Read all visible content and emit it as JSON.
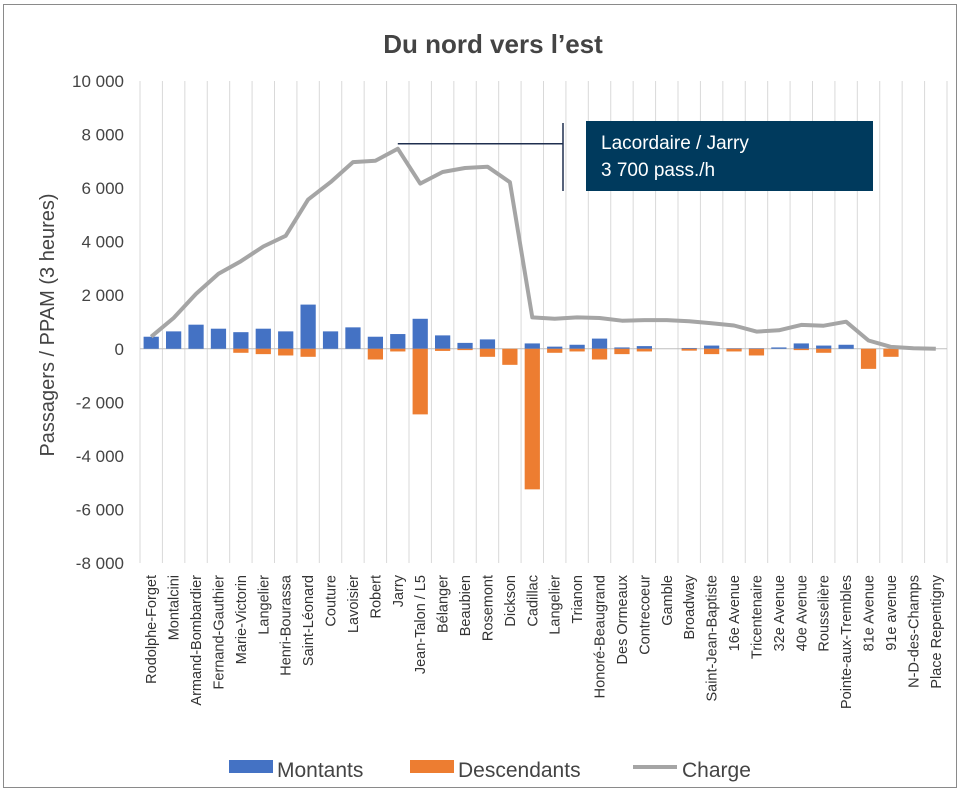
{
  "chart_data": {
    "type": "bar",
    "title": "Du nord vers l’est",
    "ylabel": "Passagers / PPAM (3 heures)",
    "xlabel": "",
    "ylim": [
      -8000,
      10000
    ],
    "yticks": [
      -8000,
      -6000,
      -4000,
      -2000,
      0,
      2000,
      4000,
      6000,
      8000,
      10000
    ],
    "ytick_labels": [
      "-8 000",
      "-6 000",
      "-4 000",
      "-2 000",
      "0",
      "2 000",
      "4 000",
      "6 000",
      "8 000",
      "10 000"
    ],
    "grid": "vertical",
    "legend_position": "bottom",
    "categories": [
      "Rodolphe-Forget",
      "Montalcini",
      "Armand-Bombardier",
      "Fernand-Gauthier",
      "Marie-Victorin",
      "Langelier",
      "Henri-Bourassa",
      "Saint-Léonard",
      "Couture",
      "Lavoisier",
      "Robert",
      "Jarry",
      "Jean-Talon / L5",
      "Bélanger",
      "Beaubien",
      "Rosemont",
      "Dickson",
      "Cadillac",
      "Langelier",
      "Trianon",
      "Honoré-Beaugrand",
      "Des Ormeaux",
      "Contrecoeur",
      "Gamble",
      "Broadway",
      "Saint-Jean-Baptiste",
      "16e Avenue",
      "Tricentenaire",
      "32e Avenue",
      "40e Avenue",
      "Rousselière",
      "Pointe-aux-Trembles",
      "81e Avenue",
      "91e avenue",
      "N-D-des-Champs",
      "Place Repentigny"
    ],
    "series": [
      {
        "name": "Montants",
        "kind": "bar",
        "color": "#4472c4",
        "values": [
          450,
          650,
          900,
          750,
          620,
          750,
          650,
          1650,
          650,
          800,
          450,
          550,
          1120,
          500,
          220,
          350,
          0,
          200,
          80,
          150,
          380,
          50,
          100,
          0,
          30,
          120,
          20,
          20,
          50,
          200,
          120,
          150,
          0,
          0,
          0,
          0
        ]
      },
      {
        "name": "Descendants",
        "kind": "bar",
        "color": "#ed7d31",
        "values": [
          0,
          0,
          0,
          0,
          -150,
          -200,
          -250,
          -300,
          0,
          0,
          -400,
          -100,
          -2450,
          -80,
          -50,
          -300,
          -600,
          -5250,
          -150,
          -100,
          -400,
          -200,
          -100,
          0,
          -70,
          -200,
          -100,
          -250,
          0,
          -50,
          -150,
          0,
          -750,
          -300,
          0,
          0
        ]
      },
      {
        "name": "Charge",
        "kind": "line",
        "color": "#a5a5a5",
        "values": [
          450,
          1150,
          2050,
          2800,
          3270,
          3820,
          4220,
          5570,
          6220,
          6970,
          7020,
          7470,
          6170,
          6600,
          6750,
          6800,
          6220,
          1170,
          1120,
          1170,
          1150,
          1050,
          1070,
          1070,
          1030,
          950,
          870,
          640,
          690,
          890,
          860,
          1010,
          310,
          70,
          20,
          0
        ]
      }
    ],
    "annotation": {
      "line1": "Lacordaire / Jarry",
      "line2": "3 700 pass./h",
      "box_color": "#003a5d",
      "points_to_category": "Jarry"
    }
  }
}
